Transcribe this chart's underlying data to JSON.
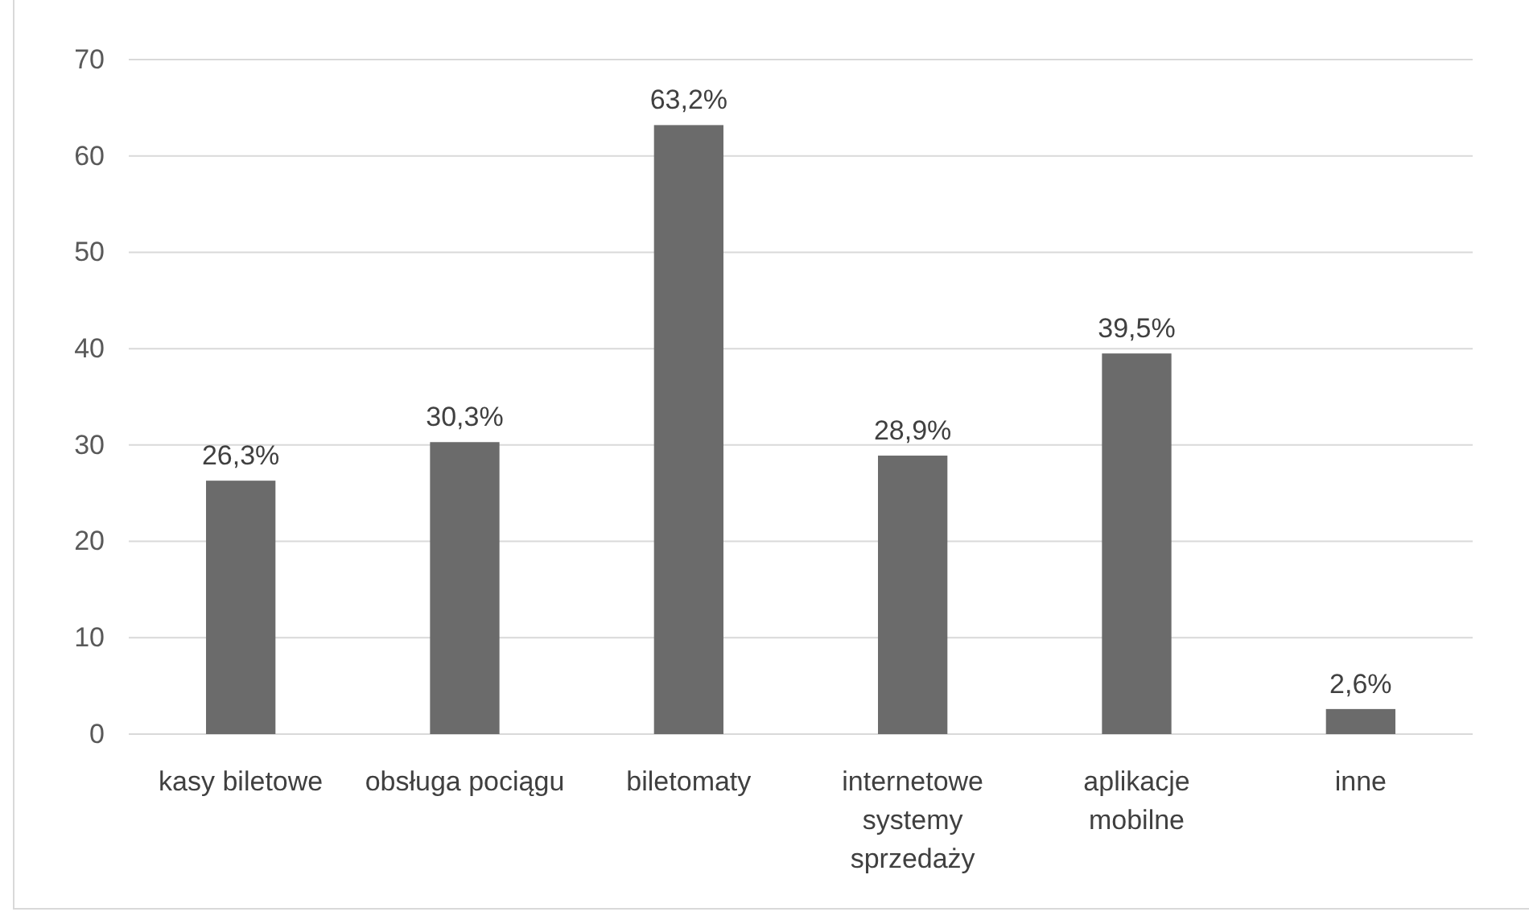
{
  "chart_data": {
    "type": "bar",
    "categories": [
      "kasy biletowe",
      "obsługa pociągu",
      "biletomaty",
      "internetowe systemy sprzedaży",
      "aplikacje mobilne",
      "inne"
    ],
    "values": [
      26.3,
      30.3,
      63.2,
      28.9,
      39.5,
      2.6
    ],
    "value_labels": [
      "26,3%",
      "30,3%",
      "63,2%",
      "28,9%",
      "39,5%",
      "2,6%"
    ],
    "color": "#6b6b6b",
    "ylim": [
      0,
      70
    ],
    "yticks": [
      0,
      10,
      20,
      30,
      40,
      50,
      60,
      70
    ],
    "grid": "y"
  }
}
